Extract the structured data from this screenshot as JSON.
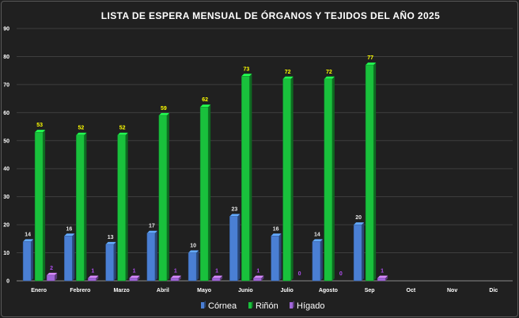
{
  "chart_data": {
    "type": "bar",
    "title": "LISTA DE ESPERA MENSUAL DE ÓRGANOS Y TEJIDOS  DEL AÑO 2025",
    "xlabel": "",
    "ylabel": "",
    "ylim": [
      0,
      90
    ],
    "yticks": [
      0,
      10,
      20,
      30,
      40,
      50,
      60,
      70,
      80,
      90
    ],
    "grid": true,
    "legend_position": "bottom",
    "categories": [
      "Enero",
      "Febrero",
      "Marzo",
      "Abril",
      "Mayo",
      "Junio",
      "Julio",
      "Agosto",
      "Sep",
      "Oct",
      "Nov",
      "Dic"
    ],
    "series": [
      {
        "name": "Córnea",
        "color": "#4a7fd4",
        "label_color": "#e6e6e6",
        "values": [
          14,
          16,
          13,
          17,
          10,
          23,
          16,
          14,
          20,
          null,
          null,
          null
        ]
      },
      {
        "name": "Riñón",
        "color": "#19c13c",
        "label_color": "#ffff00",
        "values": [
          53,
          52,
          52,
          59,
          62,
          73,
          72,
          72,
          77,
          null,
          null,
          null
        ]
      },
      {
        "name": "Hígado",
        "color": "#a066d8",
        "label_color": "#b04ef0",
        "values": [
          2,
          1,
          1,
          1,
          1,
          1,
          0,
          0,
          1,
          null,
          null,
          null
        ]
      }
    ]
  }
}
